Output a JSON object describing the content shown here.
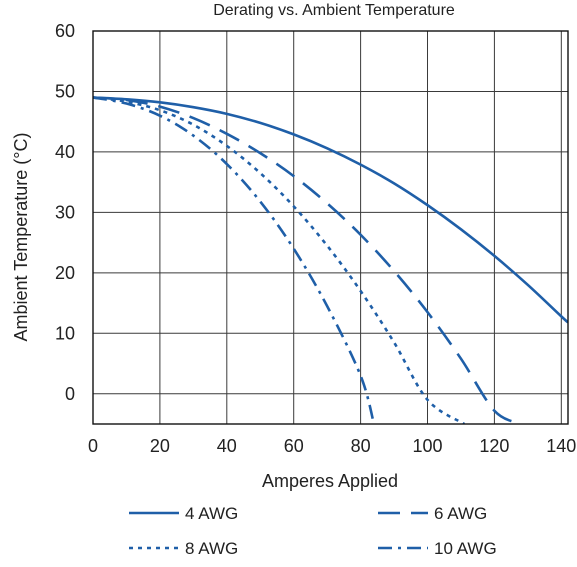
{
  "chart_data": {
    "type": "line",
    "title": "Derating vs. Ambient Temperature",
    "xlabel": "Amperes Applied",
    "ylabel": "Ambient Temperature (°C)",
    "xlim": [
      0,
      142
    ],
    "ylim": [
      -5,
      60
    ],
    "x_ticks": [
      0,
      20,
      40,
      60,
      80,
      100,
      120,
      140
    ],
    "y_ticks": [
      0,
      10,
      20,
      30,
      40,
      50,
      60
    ],
    "grid": true,
    "legend_position": "bottom",
    "line_color": "#1f5fa8",
    "series": [
      {
        "name": "4 AWG",
        "style": "solid",
        "x": [
          0,
          10,
          20,
          30,
          40,
          50,
          60,
          70,
          80,
          90,
          100,
          110,
          120,
          130,
          140,
          142
        ],
        "y": [
          49,
          48.7,
          48.2,
          47.4,
          46.3,
          44.8,
          42.9,
          40.6,
          37.9,
          34.8,
          31.2,
          27.2,
          22.8,
          18.0,
          12.8,
          11.8
        ]
      },
      {
        "name": "6 AWG",
        "style": "dash",
        "x": [
          0,
          10,
          20,
          30,
          40,
          50,
          60,
          70,
          80,
          90,
          100,
          110,
          120,
          128
        ],
        "y": [
          49,
          48.6,
          47.5,
          45.6,
          43.0,
          39.8,
          36.0,
          31.5,
          26.3,
          20.3,
          13.5,
          5.8,
          -2.8,
          -5
        ]
      },
      {
        "name": "8 AWG",
        "style": "dot",
        "x": [
          0,
          10,
          20,
          30,
          40,
          50,
          60,
          70,
          80,
          90,
          100,
          111
        ],
        "y": [
          49,
          48.3,
          46.9,
          44.5,
          41.0,
          36.5,
          31.0,
          24.5,
          17.0,
          8.5,
          -1.0,
          -5
        ]
      },
      {
        "name": "10 AWG",
        "style": "dashdot",
        "x": [
          0,
          10,
          20,
          30,
          40,
          50,
          60,
          70,
          80,
          84
        ],
        "y": [
          49,
          48.0,
          46.0,
          42.7,
          38.0,
          31.8,
          24.0,
          14.5,
          3.0,
          -5
        ]
      }
    ]
  }
}
